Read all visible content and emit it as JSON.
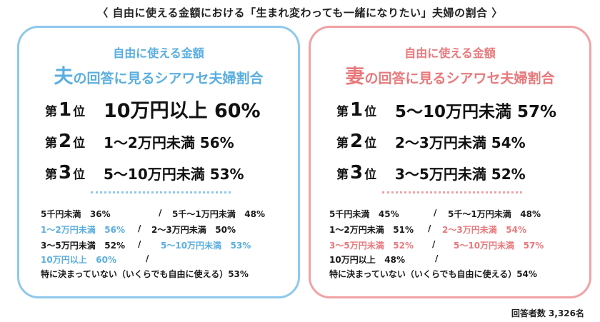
{
  "title": "〈 自由に使える金額における「生まれ変わっても一緒になりたい」夫婦の割合 〉",
  "footer": "回答者数 3,326名",
  "panels": [
    {
      "subtitle": "自由に使える金額",
      "heading_big": "夫",
      "heading_rest": "の回答に見るシアワセ夫婦割合",
      "accent": "#5aaee0",
      "border": "#8ec8ec",
      "ranks": [
        {
          "prefix": "第",
          "num": "1",
          "suffix": "位",
          "label": "10万円以上 60%"
        },
        {
          "prefix": "第",
          "num": "2",
          "suffix": "位",
          "label": "1〜2万円未満 56%"
        },
        {
          "prefix": "第",
          "num": "3",
          "suffix": "位",
          "label": "5〜10万円未満 53%"
        }
      ],
      "items": [
        {
          "label": "5千円未満",
          "value": "36%"
        },
        {
          "label": "5千〜1万円未満",
          "value": "48%"
        },
        {
          "label": "1〜2万円未満",
          "value": "56%"
        },
        {
          "label": "2〜3万円未満",
          "value": "50%"
        },
        {
          "label": "3〜5万円未満",
          "value": "52%"
        },
        {
          "label": "5〜10万円未満",
          "value": "53%"
        },
        {
          "label": "10万円以上",
          "value": "60%"
        },
        {
          "label": "特に決まっていない（いくらでも自由に使える）",
          "value": "53%"
        }
      ],
      "separator": "/"
    },
    {
      "subtitle": "自由に使える金額",
      "heading_big": "妻",
      "heading_rest": "の回答に見るシアワセ夫婦割合",
      "accent": "#e8797c",
      "border": "#f0a2a4",
      "ranks": [
        {
          "prefix": "第",
          "num": "1",
          "suffix": "位",
          "label": "5〜10万円未満 57%"
        },
        {
          "prefix": "第",
          "num": "2",
          "suffix": "位",
          "label": "2〜3万円未満 54%"
        },
        {
          "prefix": "第",
          "num": "3",
          "suffix": "位",
          "label": "3〜5万円未満 52%"
        }
      ],
      "items": [
        {
          "label": "5千円未満",
          "value": "45%"
        },
        {
          "label": "5千〜1万円未満",
          "value": "48%"
        },
        {
          "label": "1〜2万円未満",
          "value": "51%"
        },
        {
          "label": "2〜3万円未満",
          "value": "54%"
        },
        {
          "label": "3〜5万円未満",
          "value": "52%"
        },
        {
          "label": "5〜10万円未満",
          "value": "57%"
        },
        {
          "label": "10万円以上",
          "value": "48%"
        },
        {
          "label": "特に決まっていない（いくらでも自由に使える）",
          "value": "54%"
        }
      ],
      "separator": "/"
    }
  ],
  "chart_data": {
    "type": "table",
    "title": "〈 自由に使える金額における「生まれ変わっても一緒になりたい」夫婦の割合 〉",
    "categories": [
      "5千円未満",
      "5千〜1万円未満",
      "1〜2万円未満",
      "2〜3万円未満",
      "3〜5万円未満",
      "5〜10万円未満",
      "10万円以上",
      "特に決まっていない（いくらでも自由に使える）"
    ],
    "series": [
      {
        "name": "夫",
        "values": [
          36,
          48,
          56,
          50,
          52,
          53,
          60,
          53
        ]
      },
      {
        "name": "妻",
        "values": [
          45,
          48,
          51,
          54,
          52,
          57,
          48,
          54
        ]
      }
    ],
    "unit": "%"
  }
}
